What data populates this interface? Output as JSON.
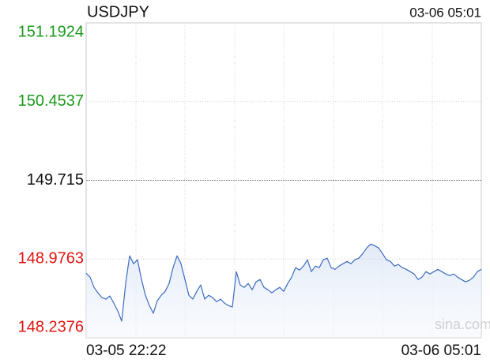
{
  "chart_data": {
    "type": "line",
    "title": "USDJPY",
    "time": "03-06 05:01",
    "watermark": "sina.com",
    "categories": [
      "03-05 22:22",
      null,
      null,
      null,
      null,
      null,
      null,
      null,
      null,
      null,
      null,
      null,
      null,
      null,
      null,
      null,
      null,
      null,
      null,
      null,
      null,
      null,
      null,
      null,
      null,
      null,
      null,
      null,
      null,
      null,
      null,
      null,
      null,
      null,
      null,
      null,
      null,
      null,
      null,
      null,
      null,
      null,
      null,
      null,
      null,
      null,
      null,
      null,
      null,
      null,
      null,
      null,
      null,
      null,
      null,
      null,
      null,
      null,
      null,
      null,
      null,
      null,
      null,
      null,
      null,
      null,
      null,
      null,
      null,
      null,
      null,
      null,
      null,
      null,
      null,
      null,
      null,
      null,
      null,
      null,
      null,
      null,
      null,
      null,
      null,
      null,
      null,
      null,
      null,
      null,
      null,
      null,
      null,
      null,
      null,
      null,
      null,
      null,
      null,
      null,
      "03-06 05:01"
    ],
    "series": [
      {
        "name": "USDJPY",
        "color": "#3d6cc0",
        "values": [
          148.843,
          148.806,
          148.71,
          148.659,
          148.614,
          148.6,
          148.629,
          148.563,
          148.489,
          148.393,
          148.747,
          149.006,
          148.932,
          148.969,
          148.784,
          148.636,
          148.54,
          148.467,
          148.585,
          148.636,
          148.673,
          148.747,
          148.895,
          149.006,
          148.932,
          148.784,
          148.636,
          148.6,
          148.673,
          148.733,
          148.6,
          148.636,
          148.614,
          148.577,
          148.6,
          148.563,
          148.54,
          148.526,
          148.858,
          148.733,
          148.71,
          148.747,
          148.688,
          148.762,
          148.784,
          148.71,
          148.688,
          148.659,
          148.688,
          148.71,
          148.673,
          148.747,
          148.806,
          148.895,
          148.873,
          148.91,
          148.969,
          148.858,
          148.91,
          148.895,
          148.969,
          148.984,
          148.895,
          148.88,
          148.91,
          148.932,
          148.954,
          148.932,
          148.969,
          148.984,
          149.028,
          149.08,
          149.117,
          149.102,
          149.08,
          149.028,
          148.969,
          148.954,
          148.91,
          148.925,
          148.895,
          148.88,
          148.858,
          148.836,
          148.784,
          148.806,
          148.858,
          148.836,
          148.858,
          148.88,
          148.858,
          148.836,
          148.821,
          148.836,
          148.806,
          148.784,
          148.762,
          148.777,
          148.806,
          148.858,
          148.88
        ]
      }
    ],
    "ylim": [
      148.2376,
      151.1924
    ],
    "yticks": [
      148.2376,
      148.9763,
      149.715,
      150.4537,
      151.1924
    ],
    "ytick_colors": [
      "#e0140f",
      "#e0140f",
      "#111111",
      "#1a9a1a",
      "#1a9a1a"
    ],
    "grid": true
  }
}
